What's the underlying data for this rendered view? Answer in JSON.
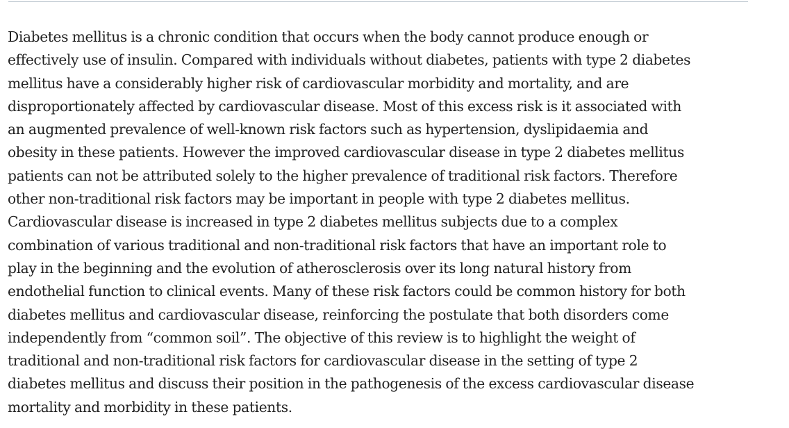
{
  "abstract": {
    "lines": [
      "Diabetes mellitus is a chronic condition that occurs when the body cannot produce enough or",
      "effectively use of insulin. Compared with individuals without diabetes, patients with type 2 diabetes",
      "mellitus have a considerably higher risk of cardiovascular morbidity and mortality, and are",
      "disproportionately affected by cardiovascular disease. Most of this excess risk is it associated with",
      "an augmented prevalence of well-known risk factors such as hypertension, dyslipidaemia and",
      "obesity in these patients. However the improved cardiovascular disease in type 2 diabetes mellitus",
      "patients can not be attributed solely to the higher prevalence of traditional risk factors. Therefore",
      "other non-traditional risk factors may be important in people with type 2 diabetes mellitus.",
      "Cardiovascular disease is increased in type 2 diabetes mellitus subjects due to a complex",
      "combination of various traditional and non-traditional risk factors that have an important role to",
      "play in the beginning and the evolution of atherosclerosis over its long natural history from",
      "endothelial function to clinical events. Many of these risk factors could be common history for both",
      "diabetes mellitus and cardiovascular disease, reinforcing the postulate that both disorders come",
      "independently from “common soil”. The objective of this review is to highlight the weight of",
      "traditional and non-traditional risk factors for cardiovascular disease in the setting of type 2",
      "diabetes mellitus and discuss their position in the pathogenesis of the excess cardiovascular disease",
      "mortality and morbidity in these patients."
    ]
  }
}
